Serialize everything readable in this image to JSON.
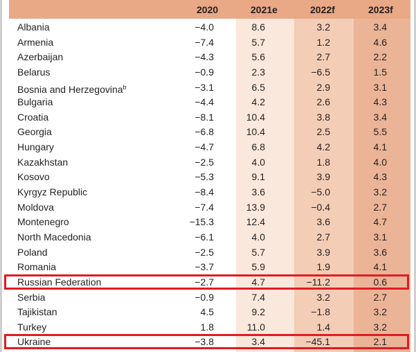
{
  "header": {
    "col_2020": "2020",
    "col_2021": "2021e",
    "col_2022": "2022f",
    "col_2023": "2023f"
  },
  "rows": [
    {
      "country": "Albania",
      "y2020": "−4.0",
      "y2021": "8.6",
      "y2022": "3.2",
      "y2023": "3.4"
    },
    {
      "country": "Armenia",
      "y2020": "−7.4",
      "y2021": "5.7",
      "y2022": "1.2",
      "y2023": "4.6"
    },
    {
      "country": "Azerbaijan",
      "y2020": "−4.3",
      "y2021": "5.6",
      "y2022": "2.7",
      "y2023": "2.2"
    },
    {
      "country": "Belarus",
      "y2020": "−0.9",
      "y2021": "2.3",
      "y2022": "−6.5",
      "y2023": "1.5"
    },
    {
      "country": "Bosnia and Herzegovina",
      "sup": "b",
      "y2020": "−3.1",
      "y2021": "6.5",
      "y2022": "2.9",
      "y2023": "3.1"
    },
    {
      "country": "Bulgaria",
      "y2020": "−4.4",
      "y2021": "4.2",
      "y2022": "2.6",
      "y2023": "4.3"
    },
    {
      "country": "Croatia",
      "y2020": "−8.1",
      "y2021": "10.4",
      "y2022": "3.8",
      "y2023": "3.4"
    },
    {
      "country": "Georgia",
      "y2020": "−6.8",
      "y2021": "10.4",
      "y2022": "2.5",
      "y2023": "5.5"
    },
    {
      "country": "Hungary",
      "y2020": "−4.7",
      "y2021": "6.8",
      "y2022": "4.2",
      "y2023": "4.1"
    },
    {
      "country": "Kazakhstan",
      "y2020": "−2.5",
      "y2021": "4.0",
      "y2022": "1.8",
      "y2023": "4.0"
    },
    {
      "country": "Kosovo",
      "y2020": "−5.3",
      "y2021": "9.1",
      "y2022": "3.9",
      "y2023": "4.3"
    },
    {
      "country": "Kyrgyz Republic",
      "y2020": "−8.4",
      "y2021": "3.6",
      "y2022": "−5.0",
      "y2023": "3.2"
    },
    {
      "country": "Moldova",
      "y2020": "−7.4",
      "y2021": "13.9",
      "y2022": "−0.4",
      "y2023": "2.7"
    },
    {
      "country": "Montenegro",
      "y2020": "−15.3",
      "y2021": "12.4",
      "y2022": "3.6",
      "y2023": "4.7"
    },
    {
      "country": "North Macedonia",
      "y2020": "−6.1",
      "y2021": "4.0",
      "y2022": "2.7",
      "y2023": "3.1"
    },
    {
      "country": "Poland",
      "y2020": "−2.5",
      "y2021": "5.7",
      "y2022": "3.9",
      "y2023": "3.6"
    },
    {
      "country": "Romania",
      "y2020": "−3.7",
      "y2021": "5.9",
      "y2022": "1.9",
      "y2023": "4.1"
    },
    {
      "country": "Russian Federation",
      "y2020": "−2.7",
      "y2021": "4.7",
      "y2022": "−11.2",
      "y2023": "0.6"
    },
    {
      "country": "Serbia",
      "y2020": "−0.9",
      "y2021": "7.4",
      "y2022": "3.2",
      "y2023": "2.7"
    },
    {
      "country": "Tajikistan",
      "y2020": "4.5",
      "y2021": "9.2",
      "y2022": "−1.8",
      "y2023": "3.2"
    },
    {
      "country": "Turkey",
      "y2020": "1.8",
      "y2021": "11.0",
      "y2022": "1.4",
      "y2023": "3.2"
    },
    {
      "country": "Ukraine",
      "y2020": "−3.8",
      "y2021": "3.4",
      "y2022": "−45.1",
      "y2023": "2.1"
    }
  ],
  "highlighted_rows": [
    "Russian Federation",
    "Ukraine"
  ],
  "colors": {
    "header": "#e9a886",
    "band_2021": "#fbe8dc",
    "band_2022": "#f4cdb7",
    "band_2023": "#ebb497",
    "highlight_border": "#e11b22"
  }
}
